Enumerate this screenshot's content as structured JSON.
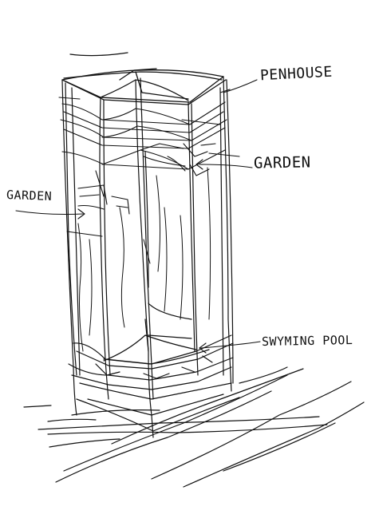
{
  "labels": {
    "penthouse": "PENHOUSE",
    "garden_right": "GARDEN",
    "garden_left": "GARDEN",
    "swimming_pool": "SWYMING POOL"
  },
  "colors": {
    "ink": "#111111",
    "paper": "#ffffff"
  }
}
